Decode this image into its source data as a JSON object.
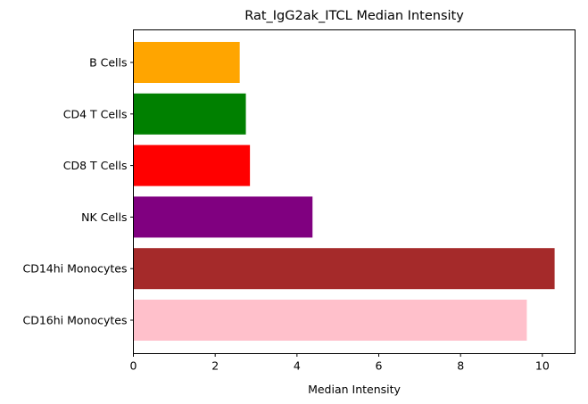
{
  "chart_data": {
    "type": "bar",
    "orientation": "horizontal",
    "title": "Rat_IgG2ak_ITCL Median Intensity",
    "xlabel": "Median Intensity",
    "ylabel": "",
    "xlim": [
      0,
      10.8
    ],
    "xticks": [
      0,
      2,
      4,
      6,
      8,
      10
    ],
    "grid": false,
    "categories": [
      "B Cells",
      "CD4 T Cells",
      "CD8 T Cells",
      "NK Cells",
      "CD14hi Monocytes",
      "CD16hi Monocytes"
    ],
    "values": [
      2.6,
      2.75,
      2.85,
      4.38,
      10.3,
      9.62
    ],
    "colors": [
      "#ffa500",
      "#008000",
      "#ff0000",
      "#800080",
      "#a52a2a",
      "#ffc0cb"
    ]
  }
}
